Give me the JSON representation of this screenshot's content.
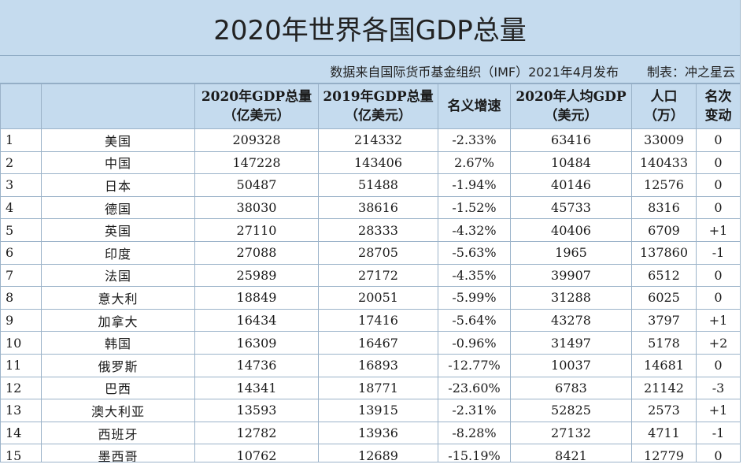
{
  "title": "2020年世界各国GDP总量",
  "source": {
    "note": "数据来自国际货币基金组织（IMF）2021年4月发布",
    "maker": "制表：冲之星云"
  },
  "headers": [
    {
      "line1": "",
      "line2": ""
    },
    {
      "line1": "",
      "line2": ""
    },
    {
      "line1": "2020年GDP总量",
      "line2": "（亿美元）"
    },
    {
      "line1": "2019年GDP总量",
      "line2": "（亿美元）"
    },
    {
      "line1": "名义增速",
      "line2": ""
    },
    {
      "line1": "2020年人均GDP",
      "line2": "（美元）"
    },
    {
      "line1": "人口",
      "line2": "（万）"
    },
    {
      "line1": "名次",
      "line2": "变动"
    }
  ],
  "rows": [
    {
      "rank": "1",
      "country": "美国",
      "gdp2020": "209328",
      "gdp2019": "214332",
      "growth": "-2.33%",
      "per_capita": "63416",
      "population": "33009",
      "change": "0"
    },
    {
      "rank": "2",
      "country": "中国",
      "gdp2020": "147228",
      "gdp2019": "143406",
      "growth": "2.67%",
      "per_capita": "10484",
      "population": "140433",
      "change": "0"
    },
    {
      "rank": "3",
      "country": "日本",
      "gdp2020": "50487",
      "gdp2019": "51488",
      "growth": "-1.94%",
      "per_capita": "40146",
      "population": "12576",
      "change": "0"
    },
    {
      "rank": "4",
      "country": "德国",
      "gdp2020": "38030",
      "gdp2019": "38616",
      "growth": "-1.52%",
      "per_capita": "45733",
      "population": "8316",
      "change": "0"
    },
    {
      "rank": "5",
      "country": "英国",
      "gdp2020": "27110",
      "gdp2019": "28333",
      "growth": "-4.32%",
      "per_capita": "40406",
      "population": "6709",
      "change": "+1"
    },
    {
      "rank": "6",
      "country": "印度",
      "gdp2020": "27088",
      "gdp2019": "28705",
      "growth": "-5.63%",
      "per_capita": "1965",
      "population": "137860",
      "change": "-1"
    },
    {
      "rank": "7",
      "country": "法国",
      "gdp2020": "25989",
      "gdp2019": "27172",
      "growth": "-4.35%",
      "per_capita": "39907",
      "population": "6512",
      "change": "0"
    },
    {
      "rank": "8",
      "country": "意大利",
      "gdp2020": "18849",
      "gdp2019": "20051",
      "growth": "-5.99%",
      "per_capita": "31288",
      "population": "6025",
      "change": "0"
    },
    {
      "rank": "9",
      "country": "加拿大",
      "gdp2020": "16434",
      "gdp2019": "17416",
      "growth": "-5.64%",
      "per_capita": "43278",
      "population": "3797",
      "change": "+1"
    },
    {
      "rank": "10",
      "country": "韩国",
      "gdp2020": "16309",
      "gdp2019": "16467",
      "growth": "-0.96%",
      "per_capita": "31497",
      "population": "5178",
      "change": "+2"
    },
    {
      "rank": "11",
      "country": "俄罗斯",
      "gdp2020": "14736",
      "gdp2019": "16893",
      "growth": "-12.77%",
      "per_capita": "10037",
      "population": "14681",
      "change": "0"
    },
    {
      "rank": "12",
      "country": "巴西",
      "gdp2020": "14341",
      "gdp2019": "18771",
      "growth": "-23.60%",
      "per_capita": "6783",
      "population": "21142",
      "change": "-3"
    },
    {
      "rank": "13",
      "country": "澳大利亚",
      "gdp2020": "13593",
      "gdp2019": "13915",
      "growth": "-2.31%",
      "per_capita": "52825",
      "population": "2573",
      "change": "+1"
    },
    {
      "rank": "14",
      "country": "西班牙",
      "gdp2020": "12782",
      "gdp2019": "13936",
      "growth": "-8.28%",
      "per_capita": "27132",
      "population": "4711",
      "change": "-1"
    },
    {
      "rank": "15",
      "country": "墨西哥",
      "gdp2020": "10762",
      "gdp2019": "12689",
      "growth": "-15.19%",
      "per_capita": "8421",
      "population": "12779",
      "change": "0"
    }
  ]
}
